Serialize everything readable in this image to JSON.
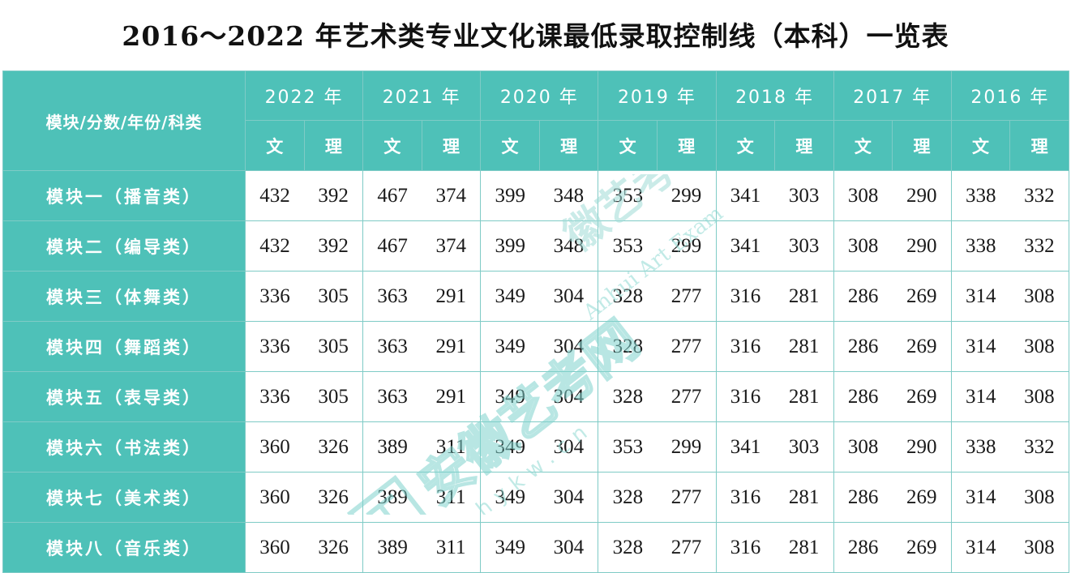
{
  "title": "2016～2022 年艺术类专业文化课最低录取控制线（本科）一览表",
  "header": {
    "corner": "模块/分数/年份/科类",
    "years": [
      "2022 年",
      "2021 年",
      "2020 年",
      "2019 年",
      "2018 年",
      "2017 年",
      "2016 年"
    ],
    "sub_wen": "文",
    "sub_li": "理"
  },
  "rows": [
    {
      "label": "模块一（播音类）",
      "values": [
        "432",
        "392",
        "467",
        "374",
        "399",
        "348",
        "353",
        "299",
        "341",
        "303",
        "308",
        "290",
        "338",
        "332"
      ]
    },
    {
      "label": "模块二（编导类）",
      "values": [
        "432",
        "392",
        "467",
        "374",
        "399",
        "348",
        "353",
        "299",
        "341",
        "303",
        "308",
        "290",
        "338",
        "332"
      ]
    },
    {
      "label": "模块三（体舞类）",
      "values": [
        "336",
        "305",
        "363",
        "291",
        "349",
        "304",
        "328",
        "277",
        "316",
        "281",
        "286",
        "269",
        "314",
        "308"
      ]
    },
    {
      "label": "模块四（舞蹈类）",
      "values": [
        "336",
        "305",
        "363",
        "291",
        "349",
        "304",
        "328",
        "277",
        "316",
        "281",
        "286",
        "269",
        "314",
        "308"
      ]
    },
    {
      "label": "模块五（表导类）",
      "values": [
        "336",
        "305",
        "363",
        "291",
        "349",
        "304",
        "328",
        "277",
        "316",
        "281",
        "286",
        "269",
        "314",
        "308"
      ]
    },
    {
      "label": "模块六（书法类）",
      "values": [
        "360",
        "326",
        "389",
        "311",
        "349",
        "304",
        "353",
        "299",
        "341",
        "303",
        "308",
        "290",
        "338",
        "332"
      ]
    },
    {
      "label": "模块七（美术类）",
      "values": [
        "360",
        "326",
        "389",
        "311",
        "349",
        "304",
        "328",
        "277",
        "316",
        "281",
        "286",
        "269",
        "314",
        "308"
      ]
    },
    {
      "label": "模块八（音乐类）",
      "values": [
        "360",
        "326",
        "389",
        "311",
        "349",
        "304",
        "328",
        "277",
        "316",
        "281",
        "286",
        "269",
        "314",
        "308"
      ]
    }
  ],
  "watermark": {
    "text_main": "安徽艺考网",
    "text_small": "Anhui Art Exam",
    "text_url": "ahykw.cn",
    "text_brand": "徽艺考",
    "color": "#7fd3cd"
  }
}
